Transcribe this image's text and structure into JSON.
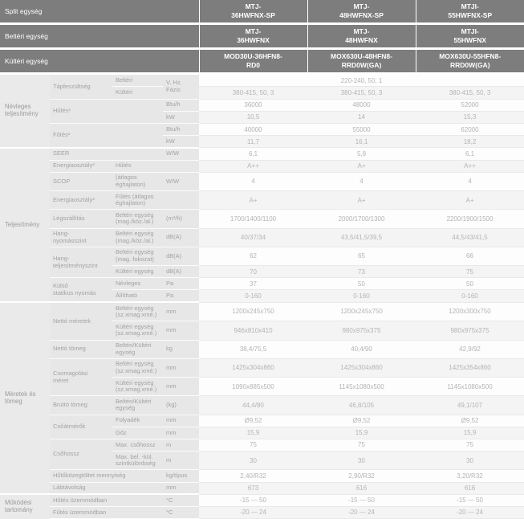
{
  "colors": {
    "header_bg": "#7d7d7d",
    "header_text": "#ffffff",
    "group_col_bg": "#eaeaea",
    "label_bg": "#e7e7e7",
    "label_text": "#a2a2a2",
    "value_text": "#b4b4b4",
    "stripe_bg": "#f4f4f4"
  },
  "header_rows": [
    {
      "label": "Split egység",
      "models": [
        "MTJ-\n36HWFNX-SP",
        "MTJ-\n48HWFNX-SP",
        "MTJI-\n55HWFNX-SP"
      ]
    },
    {
      "label": "Beltéri egység",
      "models": [
        "MTJ-\n36HWFNX",
        "MTJ-\n48HWFNX",
        "MTJI-\n55HWFNX"
      ]
    },
    {
      "label": "Kültéri egység",
      "models": [
        "MOD30U-36HFN8-\nRD0",
        "MOX630U-48HFN8-\nRRD0W(GA)",
        "MOX630U-55HFN8-\nRRD0W(GA)"
      ]
    }
  ],
  "spec_rows": [
    {
      "group": {
        "text": "Névleges\nteljesítmény",
        "rowspan": 6
      },
      "label": {
        "text": "Tápfeszültség",
        "rowspan": 2
      },
      "sub": {
        "text": "Beltéri"
      },
      "unit": {
        "text": "V, Hz, Fázis",
        "rowspan": 2
      },
      "values": [
        {
          "text": "220-240, 50, 1",
          "colspan": 3
        }
      ]
    },
    {
      "sub": {
        "text": "Kültéri"
      },
      "values": [
        "380-415, 50, 3",
        "380-415, 50, 3",
        "380-415, 50, 3"
      ]
    },
    {
      "label": {
        "text": "Hűtés¹",
        "rowspan": 2,
        "colspan": 2
      },
      "unit": {
        "text": "Btu/h"
      },
      "values": [
        "36000",
        "48000",
        "52000"
      ]
    },
    {
      "unit": {
        "text": "kW"
      },
      "values": [
        "10,5",
        "14",
        "15,3"
      ]
    },
    {
      "label": {
        "text": "Fűtés²",
        "rowspan": 2,
        "colspan": 2
      },
      "unit": {
        "text": "Btu/h"
      },
      "values": [
        "40000",
        "55000",
        "62000"
      ]
    },
    {
      "unit": {
        "text": "kW"
      },
      "values": [
        "11,7",
        "16,1",
        "18,2"
      ]
    },
    {
      "group": {
        "text": "Teljesítmény",
        "rowspan": 10
      },
      "group_begin": true,
      "label": {
        "text": "SEER",
        "colspan": 2
      },
      "unit": {
        "text": "W/W"
      },
      "values": [
        "6,1",
        "5,8",
        "6,1"
      ]
    },
    {
      "label": {
        "text": "Energiaosztály³"
      },
      "sub": {
        "text": "Hűtés"
      },
      "unit": {
        "text": ""
      },
      "values": [
        "A++",
        "A+",
        "A++"
      ]
    },
    {
      "label": {
        "text": "SCOP"
      },
      "sub": {
        "text": "(átlagos\néghajlaton)"
      },
      "unit": {
        "text": "W/W"
      },
      "values": [
        "4",
        "4",
        "4"
      ]
    },
    {
      "label": {
        "text": "Energiaosztály³"
      },
      "sub": {
        "text": "Fűtés (átlagos\néghajlaton)"
      },
      "unit": {
        "text": ""
      },
      "values": [
        "A+",
        "A+",
        "A+"
      ]
    },
    {
      "label": {
        "text": "Légszállítás"
      },
      "sub": {
        "text": "Beltéri egység\n(mag./köz./al.)"
      },
      "unit": {
        "text": "(m³/h)"
      },
      "values": [
        "1700/1400/1100",
        "2000/1700/1300",
        "2200/1900/1500"
      ]
    },
    {
      "label": {
        "text": "Hang-\nnyomásszint"
      },
      "sub": {
        "text": "Beltéri egység\n(mag./köz./al.)"
      },
      "unit": {
        "text": "dB(A)"
      },
      "values": [
        "40/37/34",
        "43,5/41,5/39,5",
        "44,5/43/41,5"
      ]
    },
    {
      "label": {
        "text": "Hang-\nteljesítményszint",
        "rowspan": 2
      },
      "sub": {
        "text": "Beltéri egység\n(mag. fokozat)"
      },
      "unit": {
        "text": "dB(A)"
      },
      "values": [
        "62",
        "65",
        "66"
      ]
    },
    {
      "sub": {
        "text": "Kültéri egység"
      },
      "unit": {
        "text": "dB(A)"
      },
      "values": [
        "70",
        "73",
        "75"
      ]
    },
    {
      "label": {
        "text": "Külső\nstatikus nyomás",
        "rowspan": 2
      },
      "sub": {
        "text": "Névleges"
      },
      "unit": {
        "text": "Pa"
      },
      "values": [
        "37",
        "50",
        "50"
      ]
    },
    {
      "sub": {
        "text": "Állítható"
      },
      "unit": {
        "text": "Pa"
      },
      "values": [
        "0-160",
        "0-160",
        "0-160"
      ]
    },
    {
      "group": {
        "text": "Méretek és\ntömeg",
        "rowspan": 12
      },
      "group_begin": true,
      "label": {
        "text": "Nettó méretek",
        "rowspan": 2
      },
      "sub": {
        "text": "Beltéri egység\n(sz.xmag.xmé.)"
      },
      "unit": {
        "text": "mm"
      },
      "values": [
        "1200x245x750",
        "1200x245x750",
        "1200x300x750"
      ]
    },
    {
      "sub": {
        "text": "Kültéri egység\n(sz.xmag.xmé.)"
      },
      "unit": {
        "text": "mm"
      },
      "values": [
        "946x810x410",
        "980x975x375",
        "980x975x375"
      ]
    },
    {
      "label": {
        "text": "Nettó tömeg"
      },
      "sub": {
        "text": "Beltéri/Kültéri\negység"
      },
      "unit": {
        "text": "kg"
      },
      "values": [
        "38,4/75,5",
        "40,4/90",
        "42,9/92"
      ]
    },
    {
      "label": {
        "text": "Csomagolási\nméret",
        "rowspan": 2
      },
      "sub": {
        "text": "Beltéri egység\n(sz.xmag.xmé.)"
      },
      "unit": {
        "text": "mm"
      },
      "values": [
        "1425x304x860",
        "1425x304x860",
        "1425x354x860"
      ]
    },
    {
      "sub": {
        "text": "Kültéri egység\n(sz.xmag.xmé.)"
      },
      "unit": {
        "text": "mm"
      },
      "values": [
        "1090x885x500",
        "1145x1080x500",
        "1145x1080x500"
      ]
    },
    {
      "label": {
        "text": "Bruttó tömeg"
      },
      "sub": {
        "text": "Beltéri/Kültéri\negység"
      },
      "unit": {
        "text": "(kg)"
      },
      "values": [
        "44,4/80",
        "46,8/105",
        "49,1/107"
      ]
    },
    {
      "label": {
        "text": "Csőátmérők",
        "rowspan": 2
      },
      "sub": {
        "text": "Folyadék"
      },
      "unit": {
        "text": "mm"
      },
      "values": [
        "Ø9,52",
        "Ø9,52",
        "Ø9,52"
      ]
    },
    {
      "sub": {
        "text": "Gőz"
      },
      "unit": {
        "text": "mm"
      },
      "values": [
        "15,9",
        "15,9",
        "15,9"
      ]
    },
    {
      "label": {
        "text": "Csőhossz",
        "rowspan": 2
      },
      "sub": {
        "text": "Max. csőhossz"
      },
      "unit": {
        "text": "m"
      },
      "values": [
        "75",
        "75",
        "75"
      ]
    },
    {
      "sub": {
        "text": "Max. bel. -kül.\nszintkülönbség"
      },
      "unit": {
        "text": "m"
      },
      "values": [
        "30",
        "30",
        "30"
      ]
    },
    {
      "label": {
        "text": "Hűtőközegtöltet mennyiség",
        "colspan": 2
      },
      "unit": {
        "text": "kg/típus"
      },
      "values": [
        "2,40/R32",
        "2,90/R32",
        "3,20/R32"
      ]
    },
    {
      "label": {
        "text": "Lábtávolság",
        "colspan": 2
      },
      "unit": {
        "text": "mm"
      },
      "values": [
        "673",
        "616",
        "616"
      ]
    },
    {
      "group": {
        "text": "Működési\ntartomány",
        "rowspan": 2
      },
      "group_begin": true,
      "label": {
        "text": "Hűtés üzemmódban",
        "colspan": 2
      },
      "unit": {
        "text": "°C"
      },
      "values": [
        "-15 — 50",
        "-15 — 50",
        "-15 — 50"
      ]
    },
    {
      "label": {
        "text": "Fűtés üzemmódban",
        "colspan": 2
      },
      "unit": {
        "text": "°C"
      },
      "values": [
        "-20 — 24",
        "-20 — 24",
        "-20 — 24"
      ]
    }
  ]
}
